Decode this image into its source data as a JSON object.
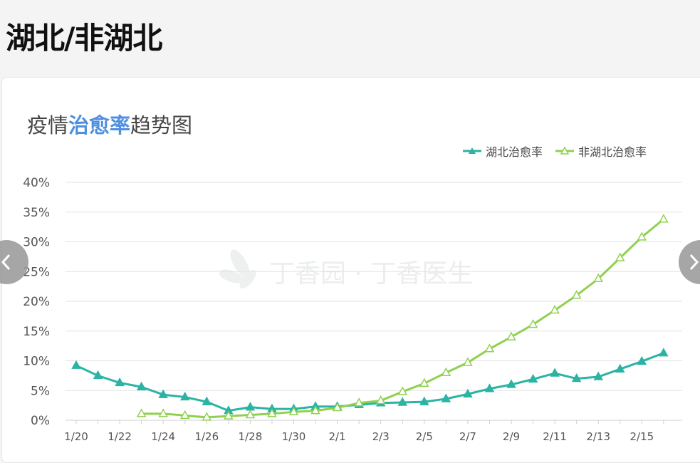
{
  "page": {
    "title": "湖北/非湖北"
  },
  "chart_title": {
    "prefix": "疫情",
    "highlight": "治愈率",
    "suffix": "趋势图"
  },
  "watermark": "丁香园 · 丁香医生",
  "nav": {
    "prev_icon": "chevron-left-icon",
    "next_icon": "chevron-right-icon"
  },
  "colors": {
    "hubei": "#2bb3a4",
    "non_hubei": "#8fd14f",
    "highlight": "#4f8fe0",
    "grid": "#e2e2e2",
    "axis_text": "#555555"
  },
  "chart_data": {
    "type": "line",
    "x": [
      "1/20",
      "1/21",
      "1/22",
      "1/23",
      "1/24",
      "1/25",
      "1/26",
      "1/27",
      "1/28",
      "1/29",
      "1/30",
      "1/31",
      "2/1",
      "2/2",
      "2/3",
      "2/4",
      "2/5",
      "2/6",
      "2/7",
      "2/8",
      "2/9",
      "2/10",
      "2/11",
      "2/12",
      "2/13",
      "2/14",
      "2/15",
      "2/16"
    ],
    "x_tick_labels": [
      "1/20",
      "1/22",
      "1/24",
      "1/26",
      "1/28",
      "1/30",
      "2/1",
      "2/3",
      "2/5",
      "2/7",
      "2/9",
      "2/11",
      "2/13",
      "2/15"
    ],
    "y_ticks": [
      "0%",
      "5%",
      "10%",
      "15%",
      "20%",
      "25%",
      "30%",
      "35%",
      "40%"
    ],
    "ylim": [
      0,
      40
    ],
    "grid": true,
    "legend_position": "top-right",
    "series": [
      {
        "name": "湖北治愈率",
        "marker": "filled-triangle",
        "values": [
          9.2,
          7.5,
          6.3,
          5.6,
          4.3,
          3.9,
          3.1,
          1.6,
          2.2,
          1.9,
          1.9,
          2.3,
          2.3,
          2.6,
          2.9,
          3.0,
          3.1,
          3.6,
          4.4,
          5.3,
          6.0,
          6.9,
          7.9,
          7.0,
          7.3,
          8.6,
          9.9,
          11.3
        ]
      },
      {
        "name": "非湖北治愈率",
        "marker": "hollow-triangle",
        "values": [
          null,
          null,
          null,
          1.1,
          1.1,
          0.8,
          0.5,
          0.7,
          0.9,
          1.1,
          1.4,
          1.6,
          2.1,
          2.9,
          3.3,
          4.8,
          6.2,
          8.0,
          9.7,
          12.0,
          14.0,
          16.1,
          18.5,
          21.0,
          23.8,
          27.3,
          30.8,
          33.8
        ]
      }
    ]
  }
}
